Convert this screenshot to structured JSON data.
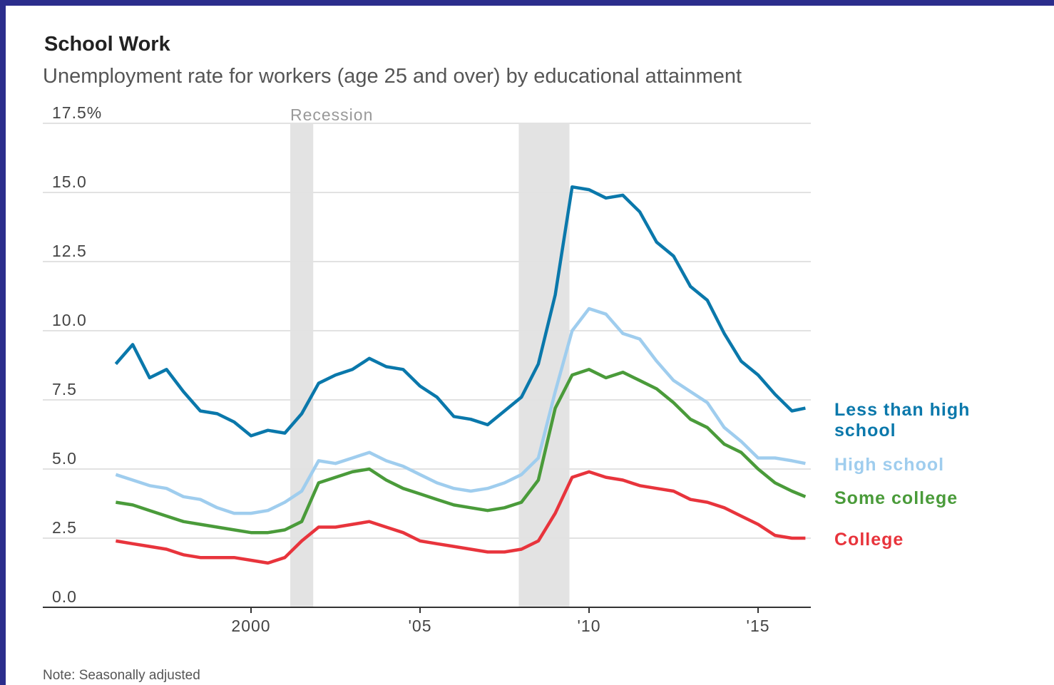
{
  "chart_data": {
    "type": "line",
    "title": "School Work",
    "subtitle": "Unemployment rate for workers (age 25 and over) by educational attainment",
    "note": "Note: Seasonally adjusted",
    "recession_label": "Recession",
    "recessions": [
      [
        2001.16,
        2001.84
      ],
      [
        2007.92,
        2009.42
      ]
    ],
    "x": [
      1996.0,
      1996.5,
      1997.0,
      1997.5,
      1998.0,
      1998.5,
      1999.0,
      1999.5,
      2000.0,
      2000.5,
      2001.0,
      2001.5,
      2002.0,
      2002.5,
      2003.0,
      2003.5,
      2004.0,
      2004.5,
      2005.0,
      2005.5,
      2006.0,
      2006.5,
      2007.0,
      2007.5,
      2008.0,
      2008.5,
      2009.0,
      2009.5,
      2010.0,
      2010.5,
      2011.0,
      2011.5,
      2012.0,
      2012.5,
      2013.0,
      2013.5,
      2014.0,
      2014.5,
      2015.0,
      2015.5,
      2016.0,
      2016.4
    ],
    "series": [
      {
        "name": "Less than high school",
        "color": "#0a78ab",
        "values": [
          8.8,
          9.5,
          8.3,
          8.6,
          7.8,
          7.1,
          7.0,
          6.7,
          6.2,
          6.4,
          6.3,
          7.0,
          8.1,
          8.4,
          8.6,
          9.0,
          8.7,
          8.6,
          8.0,
          7.6,
          6.9,
          6.8,
          6.6,
          7.1,
          7.6,
          8.8,
          11.3,
          15.2,
          15.1,
          14.8,
          14.9,
          14.3,
          13.2,
          12.7,
          11.6,
          11.1,
          9.9,
          8.9,
          8.4,
          7.7,
          7.1,
          7.2
        ]
      },
      {
        "name": "High school",
        "color": "#9fcdee",
        "values": [
          4.8,
          4.6,
          4.4,
          4.3,
          4.0,
          3.9,
          3.6,
          3.4,
          3.4,
          3.5,
          3.8,
          4.2,
          5.3,
          5.2,
          5.4,
          5.6,
          5.3,
          5.1,
          4.8,
          4.5,
          4.3,
          4.2,
          4.3,
          4.5,
          4.8,
          5.4,
          7.8,
          10.0,
          10.8,
          10.6,
          9.9,
          9.7,
          8.9,
          8.2,
          7.8,
          7.4,
          6.5,
          6.0,
          5.4,
          5.4,
          5.3,
          5.2
        ]
      },
      {
        "name": "Some college",
        "color": "#4a9b3a",
        "values": [
          3.8,
          3.7,
          3.5,
          3.3,
          3.1,
          3.0,
          2.9,
          2.8,
          2.7,
          2.7,
          2.8,
          3.1,
          4.5,
          4.7,
          4.9,
          5.0,
          4.6,
          4.3,
          4.1,
          3.9,
          3.7,
          3.6,
          3.5,
          3.6,
          3.8,
          4.6,
          7.2,
          8.4,
          8.6,
          8.3,
          8.5,
          8.2,
          7.9,
          7.4,
          6.8,
          6.5,
          5.9,
          5.6,
          5.0,
          4.5,
          4.2,
          4.0
        ]
      },
      {
        "name": "College",
        "color": "#e8343c",
        "values": [
          2.4,
          2.3,
          2.2,
          2.1,
          1.9,
          1.8,
          1.8,
          1.8,
          1.7,
          1.6,
          1.8,
          2.4,
          2.9,
          2.9,
          3.0,
          3.1,
          2.9,
          2.7,
          2.4,
          2.3,
          2.2,
          2.1,
          2.0,
          2.0,
          2.1,
          2.4,
          3.4,
          4.7,
          4.9,
          4.7,
          4.6,
          4.4,
          4.3,
          4.2,
          3.9,
          3.8,
          3.6,
          3.3,
          3.0,
          2.6,
          2.5,
          2.5
        ]
      }
    ],
    "xlim": [
      1993.84,
      2016.56
    ],
    "xticks": [
      {
        "value": 2000,
        "label": "2000"
      },
      {
        "value": 2005,
        "label": "'05"
      },
      {
        "value": 2010,
        "label": "'10"
      },
      {
        "value": 2015,
        "label": "'15"
      }
    ],
    "ylim": [
      0,
      17.5
    ],
    "yticks": [
      {
        "value": 0,
        "label": "0.0"
      },
      {
        "value": 2.5,
        "label": "2.5"
      },
      {
        "value": 5,
        "label": "5.0"
      },
      {
        "value": 7.5,
        "label": "7.5"
      },
      {
        "value": 10,
        "label": "10.0"
      },
      {
        "value": 12.5,
        "label": "12.5"
      },
      {
        "value": 15,
        "label": "15.0"
      },
      {
        "value": 17.5,
        "label": "17.5%"
      }
    ],
    "grid": true
  }
}
